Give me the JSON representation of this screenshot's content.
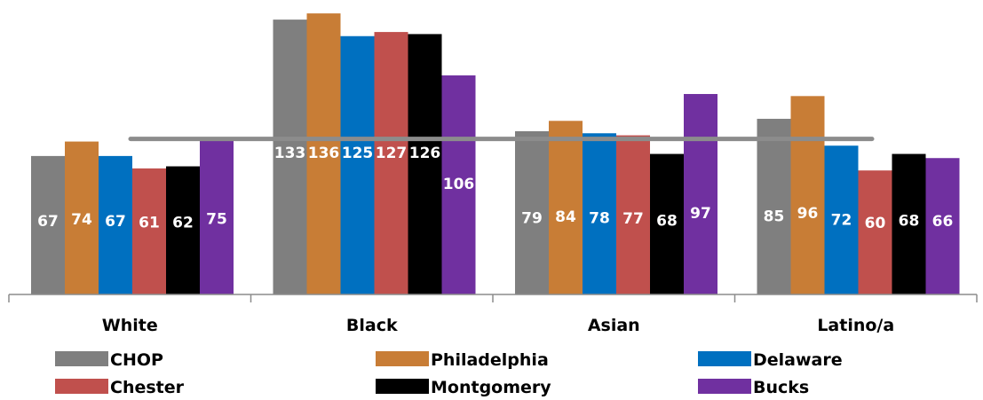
{
  "chart_data": {
    "type": "bar",
    "categories": [
      "White",
      "Black",
      "Asian",
      "Latino/a"
    ],
    "series": [
      {
        "name": "CHOP",
        "color": "#7f7f7f",
        "values": [
          67,
          133,
          79,
          85
        ]
      },
      {
        "name": "Philadelphia",
        "color": "#c87d36",
        "values": [
          74,
          136,
          84,
          96
        ]
      },
      {
        "name": "Delaware",
        "color": "#0070c0",
        "values": [
          67,
          125,
          78,
          72
        ]
      },
      {
        "name": "Chester",
        "color": "#c0504d",
        "values": [
          61,
          127,
          77,
          60
        ]
      },
      {
        "name": "Montgomery",
        "color": "#000000",
        "values": [
          62,
          126,
          68,
          68
        ]
      },
      {
        "name": "Bucks",
        "color": "#7030a0",
        "values": [
          75,
          106,
          97,
          66
        ]
      }
    ],
    "reference_line": {
      "value": 77,
      "color": "#8c8c8c"
    },
    "ylim": [
      0,
      138
    ],
    "grid": false,
    "legend_position": "bottom"
  }
}
